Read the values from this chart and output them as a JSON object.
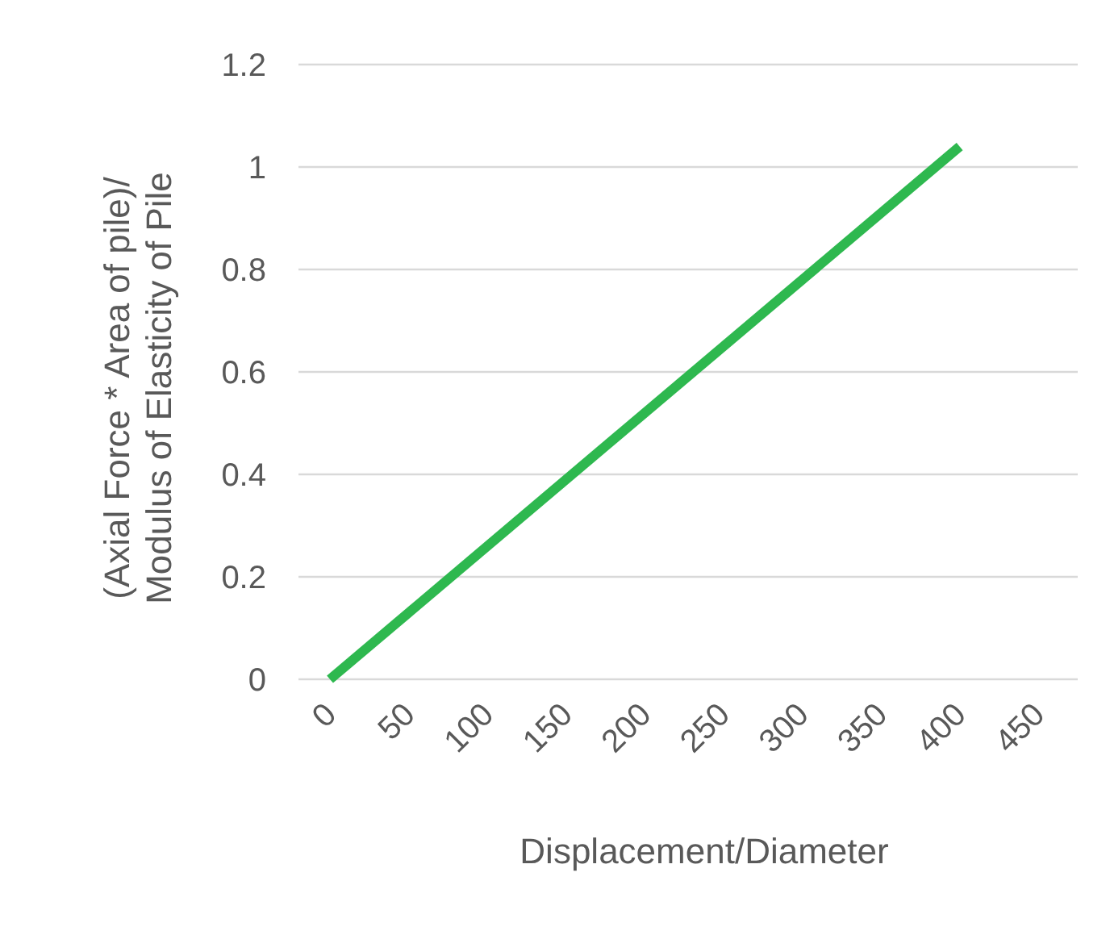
{
  "chart_data": {
    "type": "line",
    "xlabel": "Displacement/Diameter",
    "ylabel": "(Axial Force * Area of pile)/\nModulus of Elasticity of Pile",
    "x": [
      0,
      400
    ],
    "series": [
      {
        "color": "#2eb84f",
        "values": [
          0,
          1.04
        ]
      }
    ],
    "xlim": [
      -20,
      475
    ],
    "xticks": [
      0,
      50,
      100,
      150,
      200,
      250,
      300,
      350,
      400,
      450
    ],
    "ylim": [
      0,
      1.2
    ],
    "yticks": [
      0,
      0.2,
      0.4,
      0.6,
      0.8,
      1,
      1.2
    ],
    "grid": "y"
  }
}
